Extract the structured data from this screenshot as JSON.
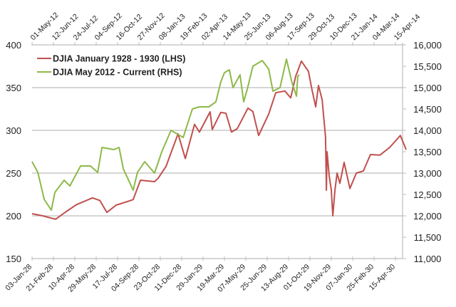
{
  "chart_data": {
    "type": "line",
    "title": "",
    "x_unit": "weeks since start of each series",
    "legend_position": "top-left",
    "grid": "horizontal",
    "left_axis": {
      "ylim": [
        150,
        400
      ],
      "ticks": [
        150,
        200,
        250,
        300,
        350,
        400
      ],
      "tick_labels": [
        "150",
        "200",
        "250",
        "300",
        "350",
        "400"
      ]
    },
    "right_axis": {
      "ylim": [
        11000,
        16000
      ],
      "ticks": [
        11000,
        11500,
        12000,
        12500,
        13000,
        13500,
        14000,
        14500,
        15000,
        15500,
        16000
      ],
      "tick_labels": [
        "11,000",
        "11,500",
        "12,000",
        "12,500",
        "13,000",
        "13,500",
        "14,000",
        "14,500",
        "15,000",
        "15,500",
        "16,000"
      ]
    },
    "bottom_axis_labels": [
      "03-Jan-28",
      "21-Feb-28",
      "10-Apr-28",
      "29-May-28",
      "17-Jul-28",
      "04-Sep-28",
      "23-Oct-28",
      "11-Dec-28",
      "29-Jan-29",
      "19-Mar-29",
      "07-May-29",
      "25-Jun-29",
      "13-Aug-29",
      "01-Oct-29",
      "19-Nov-29",
      "07-Jan-30",
      "25-Feb-30",
      "15-Apr-30"
    ],
    "top_axis_labels": [
      "01-May-12",
      "12-Jun-12",
      "24-Jul-12",
      "04-Sep-12",
      "16-Oct-12",
      "27-Nov-12",
      "08-Jan-13",
      "19-Feb-13",
      "02-Apr-13",
      "14-May-13",
      "25-Jun-13",
      "06-Aug-13",
      "17-Sep-13",
      "29-Oct-13",
      "10-Dec-13",
      "21-Jan-14",
      "04-Mar-14",
      "15-Apr-14"
    ],
    "tick_interval_weeks": 7,
    "series": [
      {
        "name": "DJIA January 1928 - 1930 (LHS)",
        "axis": "left",
        "color": "#c0504d",
        "x": [
          0,
          3.5,
          7.7,
          11.2,
          14.5,
          19.8,
          22.2,
          24.5,
          27.5,
          31.5,
          33.1,
          35.5,
          40.1,
          41.3,
          43.9,
          47.8,
          50.2,
          53.2,
          54.8,
          58.3,
          59,
          61.8,
          63.5,
          65.3,
          67.2,
          70.7,
          72.3,
          74.2,
          77.5,
          79.8,
          82.8,
          84.7,
          86.3,
          88.2,
          90.5,
          91.7,
          92.9,
          93.8,
          95,
          96.1,
          96.4,
          96.6,
          97.3,
          98,
          98.5,
          99.2,
          99.9,
          100.8,
          102.2,
          104.1,
          106.2,
          108.5,
          110.8,
          113.9,
          117.1,
          120.6,
          122.5
        ],
        "values": [
          202.5,
          200,
          196,
          205,
          213,
          221,
          218,
          204,
          212.5,
          217,
          219,
          241.7,
          240,
          244,
          258,
          296,
          267,
          307,
          298,
          321.7,
          301,
          321,
          320,
          298,
          302,
          326,
          322,
          294,
          319,
          344,
          346,
          338,
          363,
          381,
          369,
          347,
          327.5,
          352.5,
          336,
          292,
          230,
          275,
          247,
          230,
          200,
          230,
          250,
          238,
          262.5,
          232,
          250,
          252.5,
          271.7,
          271,
          280,
          294,
          277.5
        ]
      },
      {
        "name": "DJIA May 2012 - Current (RHS)",
        "axis": "right",
        "color": "#8db948",
        "x": [
          0,
          1.9,
          4,
          6.3,
          7.5,
          10.5,
          12.4,
          15.9,
          19.1,
          21.5,
          22.9,
          26.8,
          28.5,
          29.9,
          33.1,
          34.5,
          36.9,
          40.1,
          42.5,
          45.5,
          49.5,
          52.5,
          54.8,
          57.9,
          60.2,
          61.8,
          63,
          64.6,
          65.8,
          68.1,
          69.3,
          70.5,
          72.3,
          75.4,
          77.5,
          78.9,
          81.2,
          83.3,
          85.2,
          86.6,
          87,
          87.5
        ],
        "values": [
          13267,
          13017,
          12383,
          12133,
          12550,
          12833,
          12700,
          13167,
          13167,
          13017,
          13600,
          13550,
          13600,
          13100,
          12600,
          13017,
          13267,
          13000,
          13500,
          14000,
          13833,
          14500,
          14550,
          14550,
          14667,
          15133,
          15350,
          15417,
          15000,
          15300,
          14667,
          14967,
          15500,
          15633,
          15433,
          14917,
          15000,
          15667,
          15100,
          14800,
          15267,
          15300
        ]
      }
    ]
  }
}
